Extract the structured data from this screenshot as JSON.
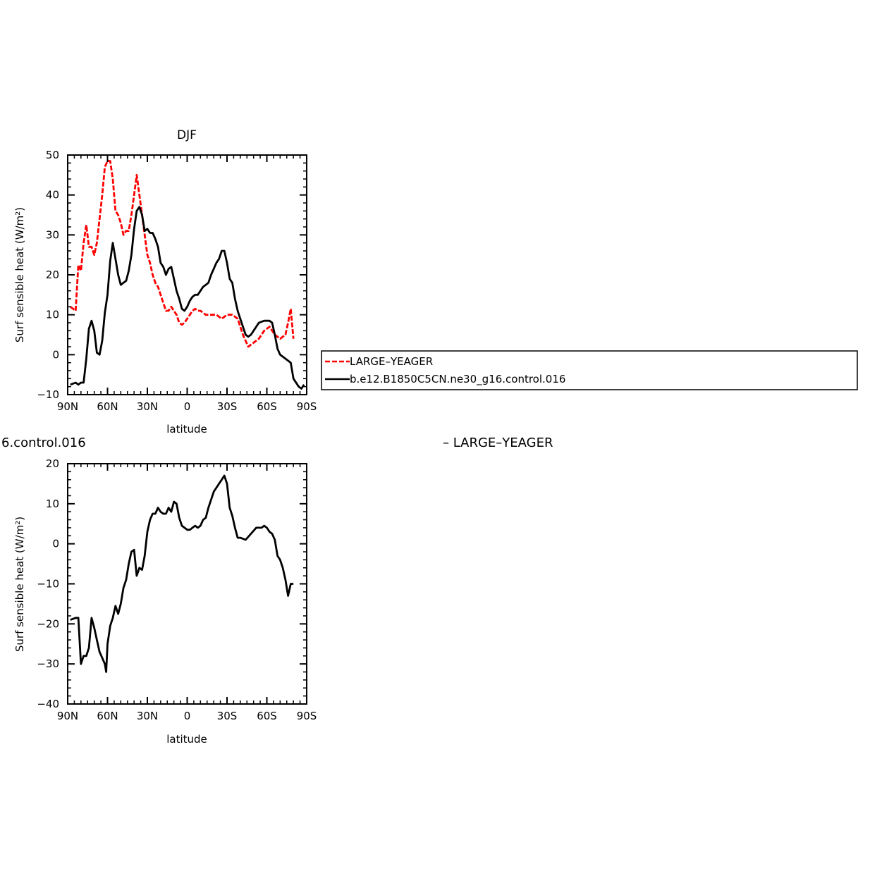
{
  "colors": {
    "background": "#ffffff",
    "axes": "#000000",
    "series_red": "#ff0000",
    "series_black": "#000000"
  },
  "fragments": {
    "left_text": "6.control.016",
    "right_text": "– LARGE–YEAGER"
  },
  "chart_data": [
    {
      "type": "line",
      "title": "DJF",
      "xlabel": "latitude",
      "ylabel": "Surf sensible heat (W/m²)",
      "xlim": [
        90,
        -90
      ],
      "ylim": [
        -10,
        50
      ],
      "yticks": [
        -10,
        0,
        10,
        20,
        30,
        40,
        50
      ],
      "xticks": [
        90,
        60,
        30,
        0,
        -30,
        -60,
        -90
      ],
      "xtick_labels": [
        "90N",
        "60N",
        "30N",
        "0",
        "30S",
        "60S",
        "90S"
      ],
      "legend": {
        "placement": "right, outside plot",
        "entries": [
          "LARGE–YEAGER",
          "b.e12.B1850C5CN.ne30_g16.control.016"
        ]
      },
      "series": [
        {
          "name": "LARGE–YEAGER",
          "color": "#ff0000",
          "dash": true,
          "x": [
            88,
            84,
            82,
            80,
            78,
            76,
            74,
            72,
            70,
            68,
            66,
            64,
            62,
            60,
            58,
            56,
            54,
            52,
            50,
            48,
            46,
            44,
            42,
            40,
            38,
            36,
            34,
            32,
            30,
            28,
            26,
            24,
            22,
            20,
            18,
            16,
            14,
            12,
            10,
            8,
            6,
            4,
            2,
            0,
            -2,
            -4,
            -6,
            -8,
            -10,
            -14,
            -18,
            -22,
            -26,
            -30,
            -34,
            -38,
            -42,
            -46,
            -50,
            -54,
            -58,
            -62,
            -66,
            -70,
            -74,
            -76,
            -78,
            -80
          ],
          "y": [
            12,
            11,
            22.5,
            21,
            28,
            32.5,
            27,
            27,
            25,
            28,
            34,
            40,
            47,
            48.5,
            48.5,
            44,
            36,
            35,
            33,
            30,
            31,
            31,
            35,
            40,
            45,
            40,
            35,
            30,
            25,
            23,
            20,
            18,
            17,
            15,
            13,
            11,
            11,
            12,
            11,
            10,
            8,
            7.5,
            8,
            9,
            10,
            11,
            11.5,
            11,
            11,
            10,
            10,
            10,
            9,
            10,
            10,
            9,
            5,
            2,
            3,
            4,
            6,
            7,
            5,
            4,
            5,
            8,
            11.5,
            4
          ]
        },
        {
          "name": "b.e12.B1850C5CN.ne30_g16.control.016",
          "color": "#000000",
          "dash": false,
          "x": [
            88,
            84,
            82,
            80,
            78,
            76,
            74,
            72,
            70,
            68,
            66,
            64,
            62,
            60,
            58,
            56,
            54,
            52,
            50,
            48,
            46,
            44,
            42,
            40,
            38,
            36,
            34,
            32,
            30,
            28,
            26,
            24,
            22,
            20,
            18,
            16,
            14,
            12,
            10,
            8,
            6,
            4,
            2,
            0,
            -2,
            -4,
            -6,
            -8,
            -10,
            -12,
            -14,
            -16,
            -18,
            -20,
            -22,
            -24,
            -26,
            -28,
            -30,
            -32,
            -34,
            -36,
            -38,
            -40,
            -42,
            -44,
            -46,
            -48,
            -50,
            -54,
            -58,
            -62,
            -64,
            -66,
            -68,
            -70,
            -74,
            -78,
            -80,
            -84,
            -86,
            -88
          ],
          "y": [
            -7.5,
            -7,
            -7.5,
            -7,
            -7,
            -1,
            6.5,
            8.5,
            6,
            0.5,
            0,
            3.5,
            10.5,
            15,
            23.5,
            28,
            24,
            20,
            17.5,
            18,
            18.5,
            21,
            25,
            31.5,
            36,
            37,
            35,
            31,
            31.5,
            30.5,
            30.5,
            29,
            27,
            23,
            22,
            20,
            21.5,
            22,
            19,
            16,
            14,
            11.5,
            11,
            12,
            13.5,
            14.5,
            15,
            15,
            16,
            17,
            17.5,
            18,
            20,
            21.5,
            23,
            24,
            26,
            26,
            23,
            19,
            18,
            14,
            11,
            9,
            7,
            5,
            4.5,
            5,
            6,
            8,
            8.5,
            8.5,
            8,
            5,
            1.5,
            0,
            -1,
            -2,
            -6,
            -8,
            -8.5,
            -7.5
          ]
        }
      ]
    },
    {
      "type": "line",
      "title": "",
      "xlabel": "latitude",
      "ylabel": "Surf sensible heat (W/m²)",
      "xlim": [
        90,
        -90
      ],
      "ylim": [
        -40,
        20
      ],
      "yticks": [
        -40,
        -30,
        -20,
        -10,
        0,
        10,
        20
      ],
      "xticks": [
        90,
        60,
        30,
        0,
        -30,
        -60,
        -90
      ],
      "xtick_labels": [
        "90N",
        "60N",
        "30N",
        "0",
        "30S",
        "60S",
        "90S"
      ],
      "series": [
        {
          "color": "#000000",
          "dash": false,
          "x": [
            88,
            84,
            82,
            80,
            78,
            76,
            74,
            72,
            70,
            68,
            66,
            64,
            62,
            61,
            60,
            58,
            56,
            54,
            52,
            50,
            48,
            46,
            44,
            42,
            40,
            38,
            36,
            34,
            32,
            30,
            28,
            26,
            24,
            22,
            20,
            18,
            16,
            14,
            12,
            10,
            8,
            6,
            4,
            2,
            0,
            -2,
            -4,
            -6,
            -8,
            -10,
            -12,
            -14,
            -16,
            -18,
            -20,
            -22,
            -24,
            -26,
            -28,
            -30,
            -32,
            -34,
            -36,
            -38,
            -40,
            -44,
            -48,
            -52,
            -56,
            -58,
            -60,
            -62,
            -64,
            -66,
            -68,
            -70,
            -72,
            -74,
            -76,
            -78,
            -80
          ],
          "y": [
            -19,
            -18.5,
            -18.5,
            -30,
            -28,
            -28,
            -26,
            -18.5,
            -21,
            -24,
            -27,
            -28.5,
            -30,
            -32,
            -25,
            -20.5,
            -18.5,
            -15.5,
            -17.5,
            -15,
            -11,
            -9,
            -5,
            -2,
            -1.5,
            -8,
            -6,
            -6.5,
            -3,
            3,
            6,
            7.5,
            7.5,
            9,
            8,
            7.5,
            7.5,
            9,
            8,
            10.5,
            10,
            6.5,
            4.5,
            4,
            3.5,
            3.5,
            4,
            4.5,
            4,
            4.5,
            6,
            6.5,
            9,
            11,
            13,
            14,
            15,
            16,
            17,
            15,
            9,
            7,
            4,
            1.5,
            1.5,
            1,
            2.5,
            4,
            4,
            4.5,
            4,
            3,
            2.5,
            1,
            -3,
            -4,
            -6,
            -9,
            -13,
            -10,
            -10
          ]
        }
      ]
    }
  ]
}
